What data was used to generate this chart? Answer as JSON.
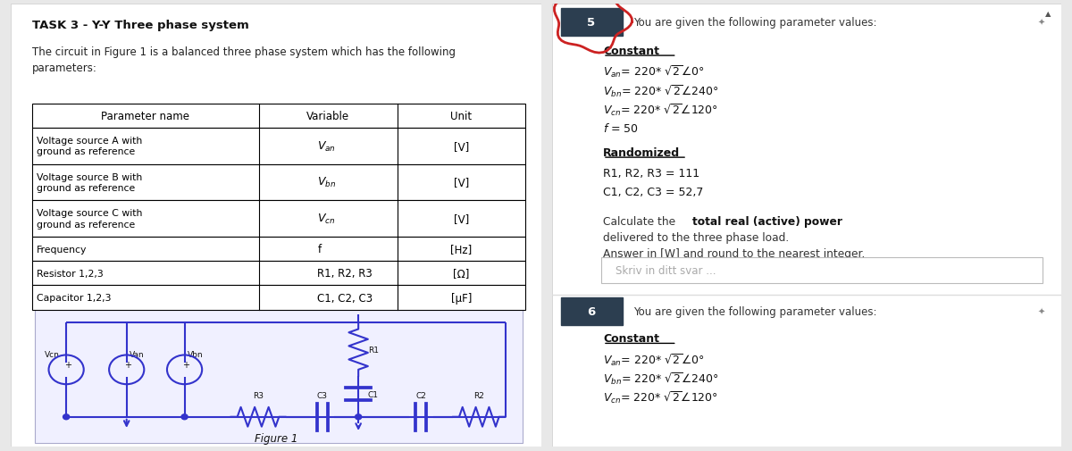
{
  "title": "TASK 3 - Y-Y Three phase system",
  "description": "The circuit in Figure 1 is a balanced three phase system which has the following\nparameters:",
  "table_headers": [
    "Parameter name",
    "Variable",
    "Unit"
  ],
  "table_rows": [
    [
      "Voltage source A with\nground as reference",
      "V_an",
      "[V]"
    ],
    [
      "Voltage source B with\nground as reference",
      "V_bn",
      "[V]"
    ],
    [
      "Voltage source C with\nground as reference",
      "V_cn",
      "[V]"
    ],
    [
      "Frequency",
      "f",
      "[Hz]"
    ],
    [
      "Resistor 1,2,3",
      "R1, R2, R3",
      "[Ω]"
    ],
    [
      "Capacitor 1,2,3",
      "C1, C2, C3",
      "[μF]"
    ]
  ],
  "figure_label": "Figure 1",
  "right_intro": "You are given the following parameter values:",
  "constant_label": "Constant",
  "randomized_label": "Randomized",
  "r_eq": "R1, R2, R3 = 111",
  "c_eq": "C1, C2, C3 = 52,7",
  "freq_eq": "f = 50",
  "answer_placeholder": "Skriv in ditt svar ...",
  "right_intro_2": "You are given the following parameter values:",
  "constant_label_2": "Constant",
  "bg_color": "#e8e8e8",
  "left_panel_bg": "#ffffff",
  "right_panel_bg": "#ffffff",
  "circuit_line_color": "#3333cc",
  "badge_bg": "#2c3e50",
  "badge_text_color": "#ffffff",
  "pin_color": "#cc0000",
  "text_color": "#333333"
}
